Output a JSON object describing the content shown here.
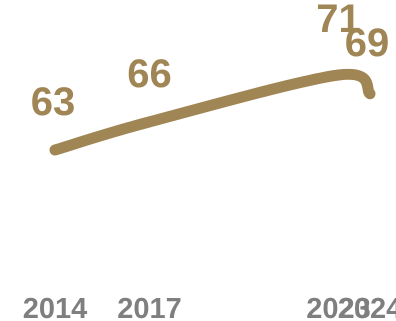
{
  "chart_data": {
    "type": "line",
    "x": [
      "2014",
      "2017",
      "2023",
      "2024"
    ],
    "series": [
      {
        "values": [
          63,
          66,
          71,
          69
        ]
      }
    ],
    "data_labels": [
      "63",
      "66",
      "71",
      "69"
    ],
    "xlabel": "",
    "ylabel": "",
    "grid": false,
    "line_color": "#a08555",
    "label_color": "#a08555",
    "tick_color": "#7f7f7f"
  }
}
